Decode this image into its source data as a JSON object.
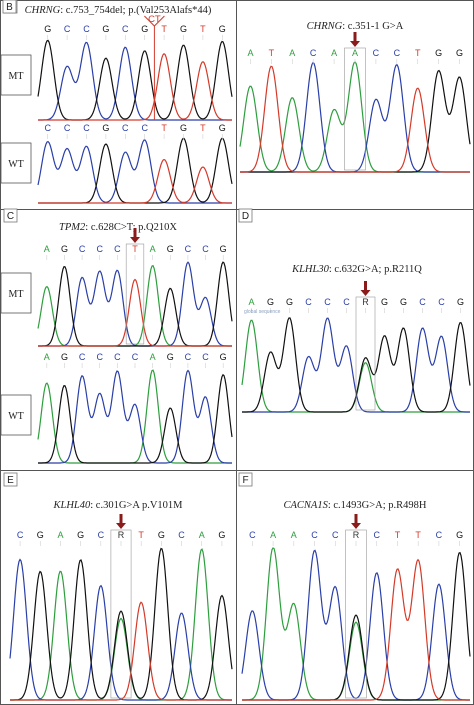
{
  "colors": {
    "A": "#2e9e3e",
    "C": "#2a3fa8",
    "G": "#111111",
    "T": "#d43a2a",
    "arrow": "#8b1a1a",
    "frame": "#555555"
  },
  "panels": [
    {
      "id": "A",
      "title_gene": "CHRNG",
      "title_rest": ": c.753_754del; p.(Val253Alafs*44)",
      "callout": "CT",
      "tracks": [
        {
          "label": "MT",
          "bases": [
            "G",
            "C",
            "C",
            "G",
            "C",
            "G",
            "T",
            "G",
            "T",
            "G"
          ]
        },
        {
          "label": "WT",
          "bases": [
            "C",
            "C",
            "C",
            "G",
            "C",
            "C",
            "T",
            "G",
            "T",
            "G"
          ]
        }
      ]
    },
    {
      "id": "B",
      "title_gene": "CHRNG",
      "title_rest": ": c.351-1 G>A",
      "tracks": [
        {
          "label": "",
          "bases": [
            "A",
            "T",
            "A",
            "C",
            "A",
            "A",
            "C",
            "C",
            "T",
            "G",
            "G"
          ]
        }
      ]
    },
    {
      "id": "C",
      "title_gene": "TPM2",
      "title_rest": ": c.628C>T; p.Q210X",
      "tracks": [
        {
          "label": "MT",
          "bases": [
            "A",
            "G",
            "C",
            "C",
            "C",
            "T",
            "A",
            "G",
            "C",
            "C",
            "G"
          ]
        },
        {
          "label": "WT",
          "bases": [
            "A",
            "G",
            "C",
            "C",
            "C",
            "C",
            "A",
            "G",
            "C",
            "C",
            "G"
          ]
        }
      ]
    },
    {
      "id": "D",
      "title_gene": "KLHL30",
      "title_rest": ": c.632G>A; p.R211Q",
      "ref_caption": "global sequence",
      "tracks": [
        {
          "label": "",
          "bases": [
            "A",
            "G",
            "G",
            "C",
            "C",
            "C",
            "R",
            "G",
            "G",
            "C",
            "C",
            "G"
          ]
        }
      ]
    },
    {
      "id": "E",
      "title_gene": "KLHL40",
      "title_rest": ": c.301G>A p.V101M",
      "tracks": [
        {
          "label": "",
          "bases": [
            "C",
            "G",
            "A",
            "G",
            "C",
            "R",
            "T",
            "G",
            "C",
            "A",
            "G"
          ]
        }
      ]
    },
    {
      "id": "F",
      "title_gene": "CACNA1S",
      "title_rest": ": c.1493G>A; p.R498H",
      "tracks": [
        {
          "label": "",
          "bases": [
            "C",
            "A",
            "A",
            "C",
            "C",
            "R",
            "C",
            "T",
            "T",
            "C",
            "G"
          ]
        }
      ]
    }
  ]
}
